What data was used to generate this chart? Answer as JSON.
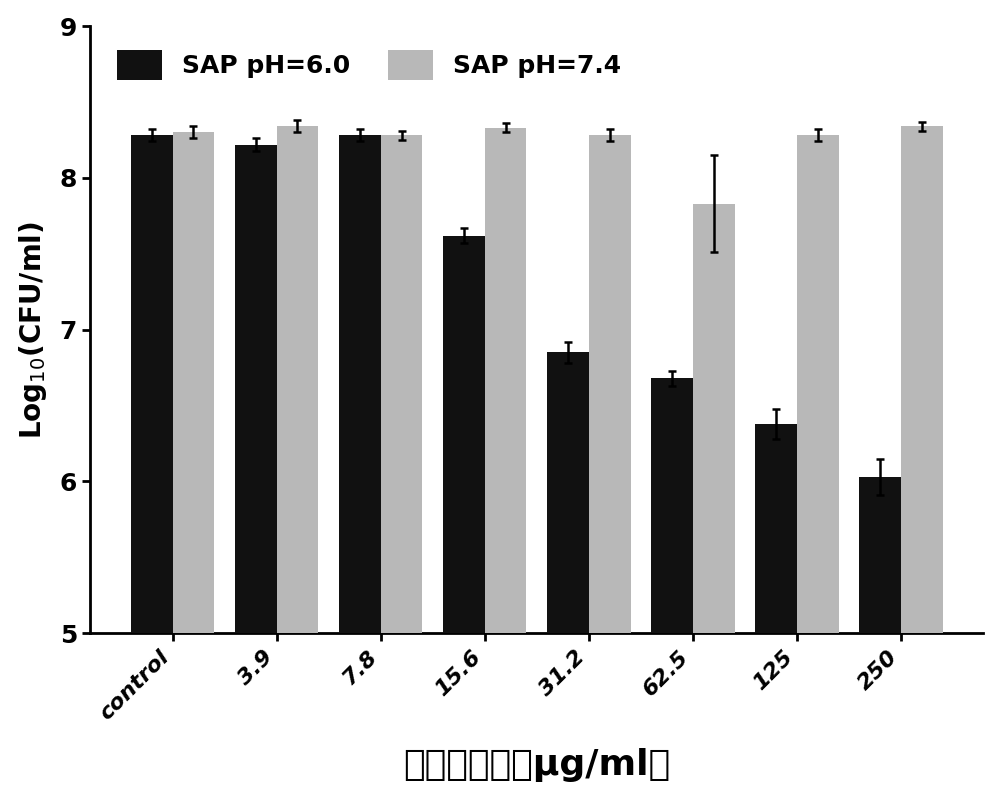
{
  "categories": [
    "control",
    "3.9",
    "7.8",
    "15.6",
    "31.2",
    "62.5",
    "125",
    "250"
  ],
  "pH60_values": [
    8.28,
    8.22,
    8.28,
    7.62,
    6.85,
    6.68,
    6.38,
    6.03
  ],
  "pH74_values": [
    8.3,
    8.34,
    8.28,
    8.33,
    8.28,
    7.83,
    8.28,
    8.34
  ],
  "pH60_errors": [
    0.04,
    0.04,
    0.04,
    0.05,
    0.07,
    0.05,
    0.1,
    0.12
  ],
  "pH74_errors": [
    0.04,
    0.04,
    0.03,
    0.03,
    0.04,
    0.32,
    0.04,
    0.03
  ],
  "color_pH60": "#111111",
  "color_pH74": "#b8b8b8",
  "ylabel": "Log$_{10}$(CFU/ml)",
  "xlabel": "抗菌肽浓度（μg/ml）",
  "ylim": [
    5,
    9
  ],
  "yticks": [
    5,
    6,
    7,
    8,
    9
  ],
  "legend_pH60": "SAP pH=6.0",
  "legend_pH74": "SAP pH=7.4",
  "bar_width": 0.4,
  "label_fontsize": 20,
  "tick_fontsize": 16,
  "legend_fontsize": 18,
  "xlabel_fontsize": 26
}
